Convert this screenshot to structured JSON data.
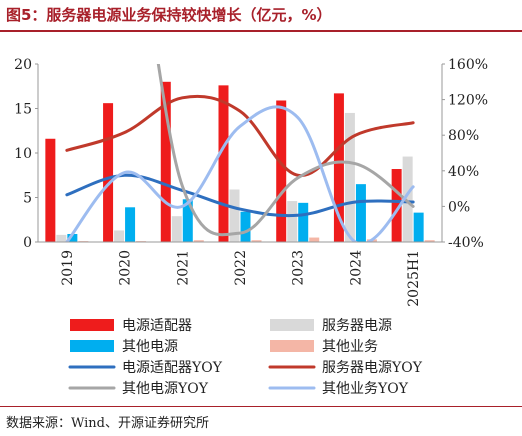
{
  "title": "图5：服务器电源业务保持较快增长（亿元，%）",
  "source": "数据来源：Wind、开源证券研究所",
  "chart_data": {
    "type": "bar",
    "categories": [
      "2019",
      "2020",
      "2021",
      "2022",
      "2023",
      "2024",
      "2025H1"
    ],
    "left_axis": {
      "ticks": [
        "0",
        "5",
        "10",
        "15",
        "20"
      ],
      "ylim": [
        0,
        20
      ]
    },
    "right_axis": {
      "ticks": [
        "-40%",
        "0%",
        "40%",
        "80%",
        "120%",
        "160%"
      ],
      "ylim": [
        -40,
        160
      ]
    },
    "bar_series": [
      {
        "name": "电源适配器",
        "color": "#ee1c1c",
        "values": [
          11.6,
          15.6,
          18.0,
          17.6,
          15.9,
          16.7,
          8.2
        ]
      },
      {
        "name": "服务器电源",
        "color": "#d9d9d9",
        "values": [
          0.8,
          1.3,
          2.9,
          5.9,
          4.6,
          14.5,
          9.6
        ]
      },
      {
        "name": "其他电源",
        "color": "#00aeef",
        "values": [
          0.9,
          3.9,
          4.8,
          3.4,
          4.4,
          6.5,
          3.3
        ]
      },
      {
        "name": "其他业务",
        "color": "#f4b6a6",
        "values": [
          0.1,
          0.1,
          0.2,
          0.2,
          0.5,
          0.3,
          0.2
        ]
      }
    ],
    "line_series": [
      {
        "name": "电源适配器YOY",
        "color": "#2e6fbf",
        "values": [
          13,
          35,
          18,
          -3,
          -10,
          5,
          5
        ]
      },
      {
        "name": "服务器电源YOY",
        "color": "#c0392b",
        "values": [
          63,
          83,
          122,
          107,
          35,
          80,
          94
        ]
      },
      {
        "name": "其他电源YOY",
        "color": "#a6a6a6",
        "values": [
          178,
          340,
          23,
          -30,
          32,
          48,
          0
        ]
      },
      {
        "name": "其他业务YOY",
        "color": "#9dbcf0",
        "values": [
          -40,
          38,
          0,
          90,
          100,
          -40,
          22
        ]
      }
    ]
  }
}
